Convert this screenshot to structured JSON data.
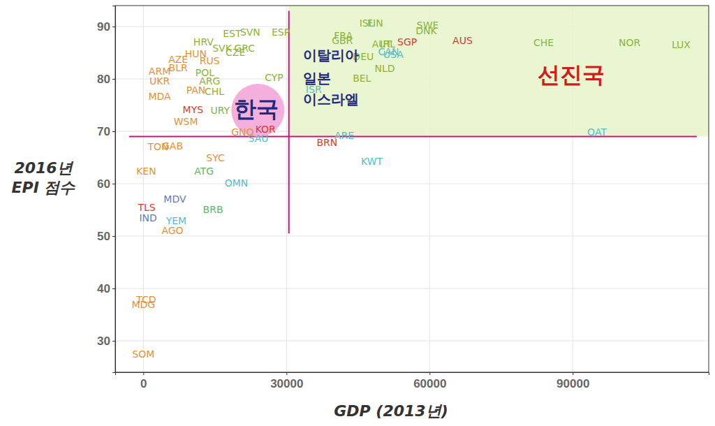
{
  "chart_data": {
    "type": "scatter",
    "x_label": "GDP (2013년)",
    "y_label": [
      "2016년",
      "EPI 점수"
    ],
    "xlim": [
      -5900,
      118500
    ],
    "ylim": [
      24,
      94
    ],
    "xticks": [
      0,
      30000,
      60000,
      90000
    ],
    "yticks": [
      30,
      40,
      50,
      60,
      70,
      80,
      90
    ],
    "grid": true,
    "marker": "text",
    "labels": [
      "ISL",
      "FIN",
      "SWE",
      "DNK",
      "FRA",
      "GBR",
      "AUT",
      "IRL",
      "SGP",
      "AUS",
      "CHE",
      "NOR",
      "LUX",
      "CAN",
      "USA",
      "DEU",
      "NLD",
      "BEL",
      "ISR",
      "CYP",
      "ESP",
      "SVN",
      "EST",
      "GRC",
      "HRV",
      "SVK",
      "CZE",
      "HUN",
      "RUS",
      "BLR",
      "AZE",
      "ARM",
      "POL",
      "UKR",
      "ARG",
      "PAN",
      "CHL",
      "MDA",
      "URY",
      "MYS",
      "WSM",
      "KOR",
      "BRN",
      "ARE",
      "SAU",
      "QAT",
      "KWT",
      "OMN",
      "ATG",
      "BRB",
      "SYC",
      "GAB",
      "MDV",
      "YEM",
      "IND",
      "AGO",
      "KEN",
      "TLS",
      "SOM",
      "MDG",
      "TCD",
      "TON",
      "GNQ"
    ],
    "x": [
      46800,
      48600,
      59600,
      59300,
      41900,
      41700,
      50000,
      51200,
      55300,
      66900,
      83900,
      101900,
      112700,
      51400,
      52400,
      46100,
      50600,
      45800,
      35700,
      27400,
      28800,
      22400,
      18600,
      21200,
      12600,
      16500,
      19300,
      11000,
      13900,
      7300,
      7300,
      3400,
      12900,
      3400,
      13900,
      11000,
      14900,
      3400,
      16100,
      10400,
      8900,
      25600,
      38500,
      42100,
      24100,
      95100,
      47900,
      19500,
      12700,
      14600,
      15100,
      6100,
      6600,
      6900,
      1000,
      6100,
      600,
      700,
      0,
      0,
      600,
      3100,
      20800
    ],
    "values": [
      90.5,
      90.5,
      90.1,
      89.1,
      88.1,
      87.2,
      86.5,
      86.5,
      86.9,
      87.2,
      86.8,
      86.8,
      86.4,
      85.1,
      84.5,
      84.1,
      81.9,
      80.0,
      77.9,
      80.2,
      88.8,
      88.8,
      88.5,
      85.7,
      86.9,
      85.7,
      84.9,
      84.7,
      83.4,
      82.0,
      83.6,
      81.4,
      81.1,
      79.5,
      79.5,
      77.8,
      77.5,
      76.6,
      73.9,
      74.0,
      71.8,
      70.3,
      67.7,
      69.1,
      68.5,
      69.8,
      64.1,
      60.0,
      62.3,
      54.9,
      64.8,
      67.1,
      56.9,
      52.8,
      53.4,
      51.0,
      62.3,
      55.4,
      27.4,
      36.8,
      37.7,
      66.9,
      69.8
    ],
    "colors": [
      "#8cb33a",
      "#8cb33a",
      "#8cb33a",
      "#8cb33a",
      "#8cb33a",
      "#8cb33a",
      "#8cb33a",
      "#8cb33a",
      "#d23c32",
      "#d23c32",
      "#8cb33a",
      "#8cb33a",
      "#8cb33a",
      "#4fbfc9",
      "#4fbfc9",
      "#8cb33a",
      "#8cb33a",
      "#8cb33a",
      "#4fbfc9",
      "#8cb33a",
      "#8cb33a",
      "#8cb33a",
      "#8cb33a",
      "#8cb33a",
      "#8cb33a",
      "#8cb33a",
      "#8cb33a",
      "#e0923a",
      "#e0923a",
      "#e0923a",
      "#e0923a",
      "#e0923a",
      "#8cb33a",
      "#e0923a",
      "#8cb33a",
      "#e0923a",
      "#8cb33a",
      "#e0923a",
      "#8cb33a",
      "#d23c32",
      "#e0923a",
      "#d23c32",
      "#d23c32",
      "#4fbfc9",
      "#4fbfc9",
      "#4fbfc9",
      "#4fbfc9",
      "#4fbfc9",
      "#5fb56a",
      "#5fb56a",
      "#e0923a",
      "#e0923a",
      "#6a78b0",
      "#4fbfc9",
      "#6a78b0",
      "#e0923a",
      "#e0923a",
      "#d23c32",
      "#e0923a",
      "#e0923a",
      "#e0923a",
      "#e0923a",
      "#e0923a"
    ],
    "highlight_region": {
      "x": [
        30500,
        118500
      ],
      "y": [
        69,
        94
      ],
      "color": "#e6f5c9"
    },
    "x_line": {
      "value": 30500,
      "from": 50.5,
      "to": 93,
      "color": "#c2187a"
    },
    "y_line": {
      "value": 69,
      "from": -3000,
      "to": 116000,
      "color": "#c2187a"
    },
    "region_label": {
      "text": "선진국",
      "x": 82700,
      "y": 80.6,
      "color": "#d01c1c"
    },
    "highlight": {
      "text": "한국",
      "x": 19000,
      "y": 74.0,
      "circle_x": 24000,
      "circle_y": 74.0,
      "color": "#1f2a80",
      "circle_color": "#f3a6d8"
    },
    "annotations": [
      {
        "text": "이탈리아",
        "x": 33400,
        "y": 84.4,
        "color": "#1f2a80"
      },
      {
        "text": "일본",
        "x": 33400,
        "y": 80.0,
        "color": "#1f2a80"
      },
      {
        "text": "이스라엘",
        "x": 33400,
        "y": 75.9,
        "color": "#1f2a80"
      }
    ]
  }
}
